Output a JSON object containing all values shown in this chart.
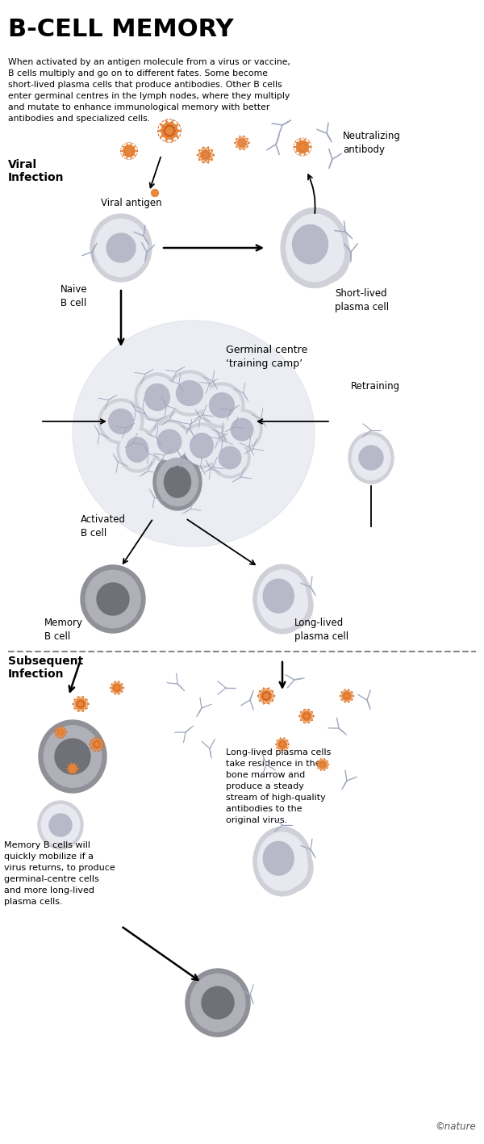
{
  "title": "B-CELL MEMORY",
  "subtitle": "When activated by an antigen molecule from a virus or vaccine,\nB cells multiply and go on to different fates. Some become\nshort-lived plasma cells that produce antibodies. Other B cells\nenter germinal centres in the lymph nodes, where they multiply\nand mutate to enhance immunological memory with better\nantibodies and specialized cells.",
  "section1_label": "Viral\nInfection",
  "section2_label": "Subsequent\nInfection",
  "labels": {
    "viral_antigen": "Viral antigen",
    "naive_b_cell": "Naive\nB cell",
    "neutralizing_antibody": "Neutralizing\nantibody",
    "short_lived_plasma": "Short-lived\nplasma cell",
    "germinal_centre": "Germinal centre\n‘training camp’",
    "activated_b_cell": "Activated\nB cell",
    "memory_b_cell": "Memory\nB cell",
    "long_lived_plasma": "Long-lived\nplasma cell",
    "retraining": "Retraining",
    "memory_text": "Memory B cells will\nquickly mobilize if a\nvirus returns, to produce\ngerminal-centre cells\nand more long-lived\nplasma cells.",
    "long_lived_text": "Long-lived plasma cells\ntake residence in the\nbone marrow and\nproduce a steady\nstream of high-quality\nantibodies to the\noriginal virus.",
    "nature_credit": "©nature"
  },
  "colors": {
    "background": "#ffffff",
    "title": "#000000",
    "text": "#000000",
    "cell_outer": "#d0d0d8",
    "cell_inner": "#e8e8f0",
    "cell_nucleus": "#b8b8c8",
    "dark_cell_outer": "#909098",
    "dark_cell_inner": "#b0b0b8",
    "dark_cell_nucleus": "#707078",
    "virus_orange": "#e8863c",
    "virus_light": "#f0b870",
    "virus_dark": "#c86020",
    "antibody_color": "#a0a8c0",
    "antigen_dot": "#e8863c",
    "germinal_bg": "#d8dce8",
    "arrow_color": "#1a1a1a",
    "section_label": "#000000",
    "dashed_line": "#888888",
    "retraining_box": "#e8e8f0"
  }
}
